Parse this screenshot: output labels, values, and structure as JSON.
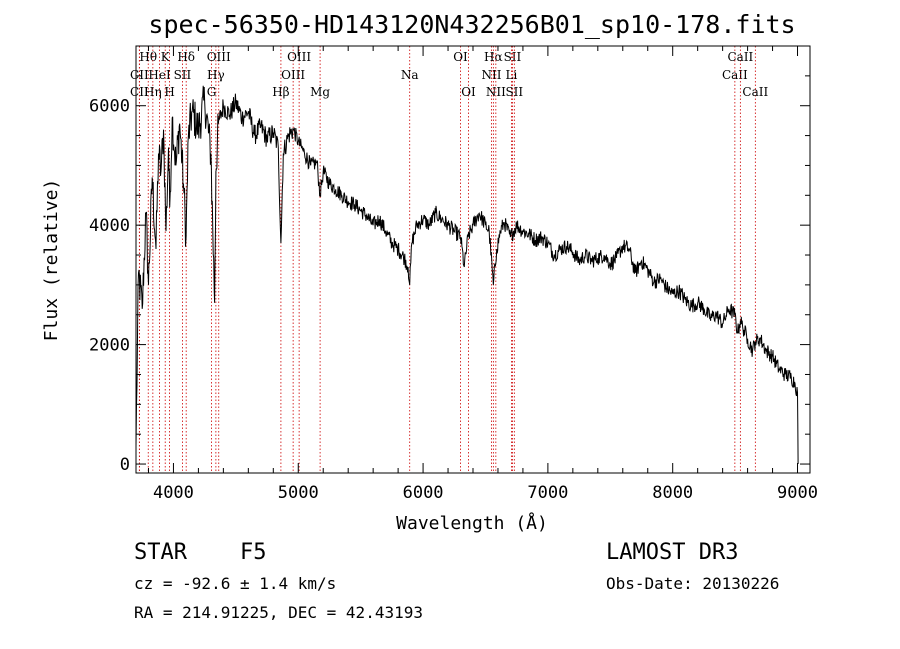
{
  "chart_data": {
    "type": "line",
    "title": "spec-56350-HD143120N432256B01_sp10-178.fits",
    "xlabel": "Wavelength (Å)",
    "ylabel": "Flux (relative)",
    "xlim": [
      3700,
      9100
    ],
    "ylim": [
      -150,
      7000
    ],
    "xticks": [
      4000,
      5000,
      6000,
      7000,
      8000,
      9000
    ],
    "yticks": [
      0,
      2000,
      4000,
      6000
    ],
    "xtick_labels": [
      "4000",
      "5000",
      "6000",
      "7000",
      "8000",
      "9000"
    ],
    "ytick_labels": [
      "0",
      "2000",
      "4000",
      "6000"
    ],
    "series": [
      {
        "name": "spectrum",
        "x": [
          3700,
          3720,
          3750,
          3780,
          3800,
          3830,
          3860,
          3880,
          3900,
          3920,
          3940,
          3960,
          3970,
          3990,
          4020,
          4050,
          4080,
          4101,
          4120,
          4150,
          4200,
          4250,
          4300,
          4330,
          4340,
          4360,
          4400,
          4450,
          4500,
          4550,
          4600,
          4650,
          4700,
          4750,
          4800,
          4840,
          4861,
          4880,
          4920,
          4960,
          5000,
          5050,
          5100,
          5150,
          5175,
          5200,
          5250,
          5300,
          5350,
          5400,
          5450,
          5500,
          5550,
          5600,
          5650,
          5700,
          5750,
          5800,
          5850,
          5880,
          5893,
          5910,
          5950,
          6000,
          6050,
          6100,
          6150,
          6200,
          6250,
          6300,
          6330,
          6360,
          6400,
          6450,
          6500,
          6530,
          6563,
          6590,
          6620,
          6650,
          6700,
          6750,
          6800,
          6850,
          6900,
          6950,
          7000,
          7050,
          7100,
          7150,
          7200,
          7250,
          7300,
          7350,
          7400,
          7450,
          7500,
          7550,
          7600,
          7650,
          7700,
          7750,
          7800,
          7850,
          7900,
          7950,
          8000,
          8050,
          8100,
          8150,
          8200,
          8250,
          8300,
          8350,
          8400,
          8450,
          8498,
          8520,
          8542,
          8560,
          8600,
          8640,
          8662,
          8700,
          8750,
          8800,
          8850,
          8900,
          8950,
          8980,
          9000,
          9005
        ],
        "values": [
          300,
          3200,
          2600,
          4200,
          3000,
          4800,
          3600,
          5200,
          4900,
          5600,
          3900,
          5300,
          4300,
          5800,
          5000,
          5700,
          4700,
          3800,
          5500,
          5900,
          5600,
          6100,
          5200,
          2700,
          4900,
          5700,
          6000,
          5850,
          6050,
          5800,
          5900,
          5500,
          5650,
          5450,
          5550,
          5300,
          3700,
          5200,
          5500,
          5600,
          5400,
          5200,
          5000,
          5050,
          4500,
          4900,
          4700,
          4600,
          4500,
          4400,
          4350,
          4250,
          4150,
          4000,
          4100,
          3900,
          3700,
          3600,
          3450,
          3300,
          3000,
          3700,
          4000,
          4100,
          4000,
          4200,
          4100,
          4000,
          3900,
          3800,
          3300,
          3800,
          4000,
          4200,
          4000,
          3900,
          3000,
          3600,
          3900,
          4050,
          3800,
          4000,
          3900,
          3850,
          3750,
          3800,
          3700,
          3500,
          3600,
          3650,
          3550,
          3400,
          3500,
          3400,
          3450,
          3500,
          3350,
          3450,
          3650,
          3600,
          3200,
          3400,
          3250,
          3050,
          3100,
          2950,
          2850,
          2900,
          2750,
          2650,
          2700,
          2600,
          2450,
          2500,
          2350,
          2600,
          2500,
          2200,
          2400,
          2300,
          2100,
          1900,
          2050,
          2100,
          1900,
          1800,
          1600,
          1500,
          1450,
          1350,
          1200,
          0
        ]
      }
    ],
    "line_markers": [
      {
        "label": "CII",
        "x": 3727,
        "row": 3
      },
      {
        "label": "CII",
        "x": 3727,
        "row": 2
      },
      {
        "label": "Hθ",
        "x": 3798,
        "row": 1
      },
      {
        "label": "Hη",
        "x": 3835,
        "row": 3
      },
      {
        "label": "HeI",
        "x": 3889,
        "row": 2
      },
      {
        "label": "K",
        "x": 3934,
        "row": 1
      },
      {
        "label": "H",
        "x": 3969,
        "row": 3
      },
      {
        "label": "SII",
        "x": 4072,
        "row": 2
      },
      {
        "label": "Hδ",
        "x": 4102,
        "row": 1
      },
      {
        "label": "G",
        "x": 4305,
        "row": 3
      },
      {
        "label": "Hγ",
        "x": 4340,
        "row": 2
      },
      {
        "label": "OIII",
        "x": 4363,
        "row": 1
      },
      {
        "label": "Hβ",
        "x": 4861,
        "row": 3
      },
      {
        "label": "OIII",
        "x": 4959,
        "row": 2
      },
      {
        "label": "OIII",
        "x": 5007,
        "row": 1
      },
      {
        "label": "Mg",
        "x": 5175,
        "row": 3
      },
      {
        "label": "Na",
        "x": 5893,
        "row": 2
      },
      {
        "label": "OI",
        "x": 6300,
        "row": 1
      },
      {
        "label": "OI",
        "x": 6364,
        "row": 3
      },
      {
        "label": "NII",
        "x": 6548,
        "row": 2
      },
      {
        "label": "Hα",
        "x": 6563,
        "row": 1
      },
      {
        "label": "NII",
        "x": 6583,
        "row": 3
      },
      {
        "label": "SII",
        "x": 6716,
        "row": 1
      },
      {
        "label": "Li",
        "x": 6708,
        "row": 2
      },
      {
        "label": "SII",
        "x": 6731,
        "row": 3
      },
      {
        "label": "CaII",
        "x": 8498,
        "row": 2
      },
      {
        "label": "CaII",
        "x": 8542,
        "row": 1
      },
      {
        "label": "CaII",
        "x": 8662,
        "row": 3
      }
    ]
  },
  "info": {
    "object_class": "STAR",
    "subclass": "F5",
    "survey": "LAMOST DR3",
    "redshift": "cz = -92.6 ± 1.4 km/s",
    "obs_date": "Obs-Date: 20130226",
    "coords": "RA = 214.91225, DEC =  42.43193"
  }
}
